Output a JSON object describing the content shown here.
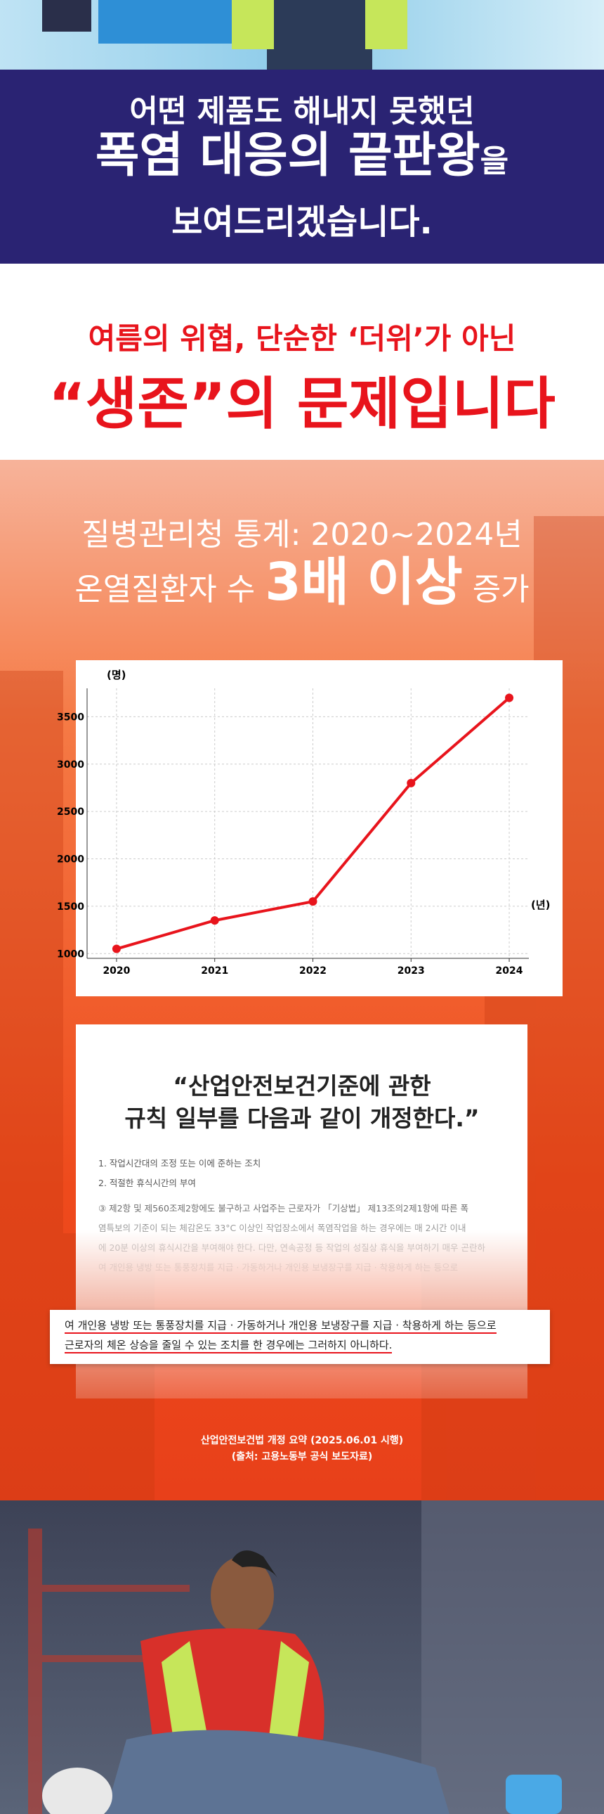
{
  "hero": {
    "line1": "어떤 제품도 해내지 못했던",
    "line2_big": "폭염 대응의 끝판왕",
    "line2_small": "을",
    "line3": "보여드리겠습니다."
  },
  "threat": {
    "line1": "여름의 위협,  단순한 ‘더위’가 아닌",
    "line2": "“생존”의 문제입니다"
  },
  "stats": {
    "line1": "질병관리청 통계: 2020~2024년",
    "line2_pre": "온열질환자 수",
    "line2_big": "3배 이상",
    "line2_post": "증가"
  },
  "chart_data": {
    "type": "line",
    "ylabel": "(명)",
    "xlabel": "(년)",
    "x": [
      2020,
      2021,
      2022,
      2023,
      2024
    ],
    "series": [
      {
        "name": "온열질환자 수",
        "color": "#e8141c",
        "values": [
          1050,
          1350,
          1550,
          2800,
          3700
        ]
      }
    ],
    "xlim": [
      2019.7,
      2024.2
    ],
    "xticks": [
      2020,
      2021,
      2022,
      2023,
      2024
    ],
    "ylim": [
      950,
      3800
    ],
    "yticks": [
      1000,
      1500,
      2000,
      2500,
      3000,
      3500
    ],
    "grid": true
  },
  "document": {
    "quote1": "“산업안전보건기준에 관한",
    "quote2": "규칙 일부를 다음과 같이 개정한다.”",
    "items": [
      "1. 작업시간대의 조정 또는 이에 준하는 조치",
      "2. 적절한 휴식시간의 부여",
      "③ 제2항 및 제560조제2항에도 불구하고 사업주는 근로자가 「기상법」 제13조의2제1항에 따른 폭",
      "염특보의 기준이 되는 체감온도 33°C 이상인 작업장소에서 폭염작업을 하는 경우에는 매 2시간 이내",
      "에 20분 이상의 휴식시간을 부여해야 한다. 다만, 연속공정 등 작업의 성질상 휴식을 부여하기 매우 곤란하",
      "여 개인용 냉방 또는 통풍장치를 지급 · 가동하거나 개인용 보냉장구를 지급 · 착용하게 하는 등으로"
    ],
    "highlight1": "여 개인용 냉방 또는 통풍장치를 지급 · 가동하거나 개인용 보냉장구를 지급 · 착용하게 하는 등으로",
    "highlight2": "근로자의 체온 상승을 줄일 수 있는 조치를 한 경우에는 그러하지 아니하다.",
    "caption1": "산업안전보건법 개정 요약 (2025.06.01 시행)",
    "caption2": "(출처: 고용노동부 공식 보도자료)"
  }
}
